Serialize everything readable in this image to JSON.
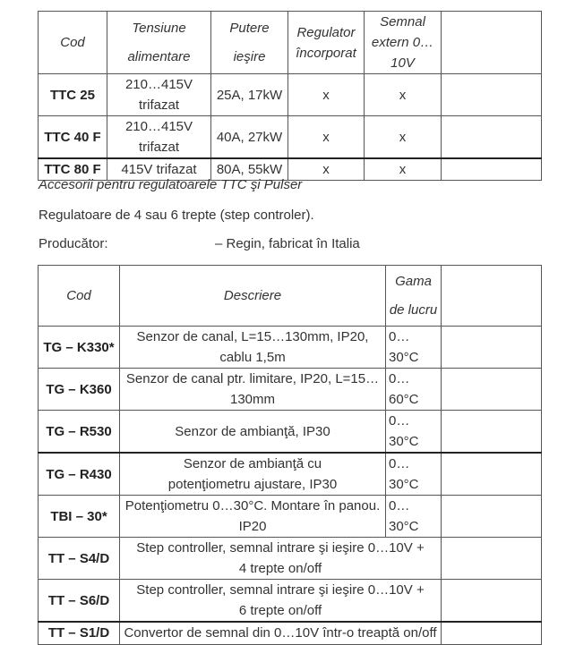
{
  "table1": {
    "headers": [
      "Cod",
      "Tensiune alimentare",
      "Putere ieşire",
      "Regulator încorporat",
      "Semnal extern 0…10V",
      ""
    ],
    "rows": [
      {
        "cod": "TTC 25",
        "tensiune": "210…415V trifazat",
        "putere": "25A, 17kW",
        "regulator": "x",
        "semnal": "x"
      },
      {
        "cod": "TTC 40 F",
        "tensiune": "210…415V trifazat",
        "putere": "40A, 27kW",
        "regulator": "x",
        "semnal": "x"
      },
      {
        "cod": "TTC 80 F",
        "tensiune": "415V trifazat",
        "putere": "80A, 55kW",
        "regulator": "x",
        "semnal": "x"
      }
    ]
  },
  "caption": "Accesorii pentru regulatoarele TTC şi Pulser",
  "intro": "Regulatoare de 4 sau 6 trepte (step controler).",
  "producer_label": "Producător:",
  "producer_value": "– Regin, fabricat în Italia",
  "table2": {
    "headers": [
      "Cod",
      "Descriere",
      "Gama de lucru",
      ""
    ],
    "rows": [
      {
        "cod": "TG – K330*",
        "descriere": "Senzor de canal, L=15…130mm, IP20, cablu 1,5m",
        "gama": "0…30°C"
      },
      {
        "cod": "TG – K360",
        "descriere": "Senzor de canal ptr. limitare, IP20, L=15…130mm",
        "gama": "0…60°C"
      },
      {
        "cod": "TG – R530",
        "descriere": "Senzor de ambianţă, IP30",
        "gama": "0…30°C"
      },
      {
        "cod": "TG – R430",
        "descriere": "Senzor de ambianţă cu potenţiometru ajustare, IP30",
        "gama": "0…30°C"
      },
      {
        "cod": "TBI – 30*",
        "descriere": "Potenţiometru 0…30°C. Montare în panou. IP20",
        "gama": "0…30°C"
      },
      {
        "cod": "TT – S4/D",
        "descriere": "Step controller, semnal intrare şi ieşire 0…10V + 4 trepte on/off"
      },
      {
        "cod": "TT – S6/D",
        "descriere": "Step controller, semnal intrare şi ieşire 0…10V + 6 trepte on/off"
      },
      {
        "cod": "TT – S1/D",
        "descriere": "Convertor de semnal din 0…10V într-o treaptă on/off"
      }
    ]
  }
}
